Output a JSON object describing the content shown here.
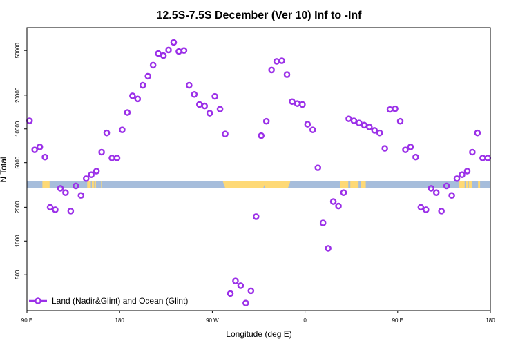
{
  "chart_data": {
    "type": "scatter",
    "title": "12.5S-7.5S December (Ver 10)   Inf to -Inf",
    "xlabel": "Longitude (deg E)",
    "ylabel": "N Total",
    "y_scale": "log",
    "xlim": [
      90,
      540
    ],
    "ylim": [
      240,
      80000
    ],
    "x_ticks": [
      {
        "value": 90,
        "label": "90 E"
      },
      {
        "value": 180,
        "label": "180"
      },
      {
        "value": 270,
        "label": "90 W"
      },
      {
        "value": 360,
        "label": "0"
      },
      {
        "value": 450,
        "label": "90 E"
      },
      {
        "value": 540,
        "label": "180"
      }
    ],
    "y_ticks": [
      {
        "value": 500,
        "label": "500"
      },
      {
        "value": 1000,
        "label": "1000"
      },
      {
        "value": 2000,
        "label": "2000"
      },
      {
        "value": 5000,
        "label": "5000"
      },
      {
        "value": 10000,
        "label": "10000"
      },
      {
        "value": 20000,
        "label": "20000"
      },
      {
        "value": 50000,
        "label": "50000"
      }
    ],
    "land_band": {
      "ocean_color": "#a6bddb",
      "land_color": "#fed976",
      "land_segments": [
        [
          148.5,
          152
        ],
        [
          153,
          155
        ],
        [
          155.5,
          157
        ],
        [
          162,
          163
        ],
        [
          280,
          322
        ],
        [
          105,
          112
        ],
        [
          394,
          402
        ],
        [
          404,
          412
        ],
        [
          414,
          419
        ],
        [
          319,
          346
        ],
        [
          509.5,
          515
        ],
        [
          516,
          518
        ],
        [
          519,
          522
        ],
        [
          528,
          530
        ]
      ]
    },
    "series": [
      {
        "name": "Land (Nadir&Glint) and Ocean (Glint)",
        "color": "#9b30e8",
        "points": [
          [
            92.5,
            11800
          ],
          [
            97.5,
            6500
          ],
          [
            102.5,
            6900
          ],
          [
            107.5,
            5600
          ],
          [
            112.5,
            2000
          ],
          [
            117.5,
            1900
          ],
          [
            122.5,
            2950
          ],
          [
            127.5,
            2700
          ],
          [
            132.5,
            1850
          ],
          [
            137.5,
            3100
          ],
          [
            142.5,
            2550
          ],
          [
            147.5,
            3600
          ],
          [
            152.5,
            3900
          ],
          [
            157.5,
            4200
          ],
          [
            162.5,
            6200
          ],
          [
            167.5,
            9200
          ],
          [
            172.5,
            5500
          ],
          [
            177.5,
            5500
          ],
          [
            182.5,
            9800
          ],
          [
            187.5,
            14000
          ],
          [
            192.5,
            19700
          ],
          [
            197.5,
            18500
          ],
          [
            202.5,
            24500
          ],
          [
            207.5,
            29500
          ],
          [
            212.5,
            37000
          ],
          [
            217.5,
            47000
          ],
          [
            222.5,
            45000
          ],
          [
            227.5,
            50500
          ],
          [
            232.5,
            59000
          ],
          [
            237.5,
            49000
          ],
          [
            242.5,
            50000
          ],
          [
            247.5,
            24500
          ],
          [
            252.5,
            20300
          ],
          [
            257.5,
            16500
          ],
          [
            262.5,
            16000
          ],
          [
            267.5,
            13800
          ],
          [
            272.5,
            19500
          ],
          [
            277.5,
            15000
          ],
          [
            282.5,
            9000
          ],
          [
            287.5,
            340
          ],
          [
            292.5,
            440
          ],
          [
            297.5,
            400
          ],
          [
            302.5,
            280
          ],
          [
            307.5,
            360
          ],
          [
            312.5,
            1650
          ],
          [
            317.5,
            8700
          ],
          [
            322.5,
            11700
          ],
          [
            327.5,
            33500
          ],
          [
            332.5,
            40000
          ],
          [
            337.5,
            40500
          ],
          [
            342.5,
            30500
          ],
          [
            347.5,
            17500
          ],
          [
            352.5,
            16800
          ],
          [
            357.5,
            16500
          ],
          [
            362.5,
            11000
          ],
          [
            367.5,
            9800
          ],
          [
            372.5,
            4500
          ],
          [
            377.5,
            1450
          ],
          [
            382.5,
            860
          ],
          [
            387.5,
            2250
          ],
          [
            392.5,
            2050
          ],
          [
            397.5,
            2700
          ],
          [
            402.5,
            12300
          ],
          [
            407.5,
            11800
          ],
          [
            412.5,
            11300
          ],
          [
            417.5,
            10800
          ],
          [
            422.5,
            10400
          ],
          [
            427.5,
            9700
          ],
          [
            432.5,
            9200
          ],
          [
            437.5,
            6700
          ],
          [
            442.5,
            14900
          ],
          [
            447.5,
            15100
          ],
          [
            452.5,
            11700
          ],
          [
            457.5,
            6500
          ],
          [
            462.5,
            6900
          ],
          [
            467.5,
            5600
          ],
          [
            472.5,
            2000
          ],
          [
            477.5,
            1900
          ],
          [
            482.5,
            2950
          ],
          [
            487.5,
            2700
          ],
          [
            492.5,
            1850
          ],
          [
            497.5,
            3100
          ],
          [
            502.5,
            2550
          ],
          [
            507.5,
            3600
          ],
          [
            512.5,
            3900
          ],
          [
            517.5,
            4200
          ],
          [
            522.5,
            6200
          ],
          [
            527.5,
            9200
          ],
          [
            532.5,
            5500
          ],
          [
            537.5,
            5500
          ]
        ]
      }
    ],
    "legend": {
      "position": "bottom-left"
    }
  }
}
